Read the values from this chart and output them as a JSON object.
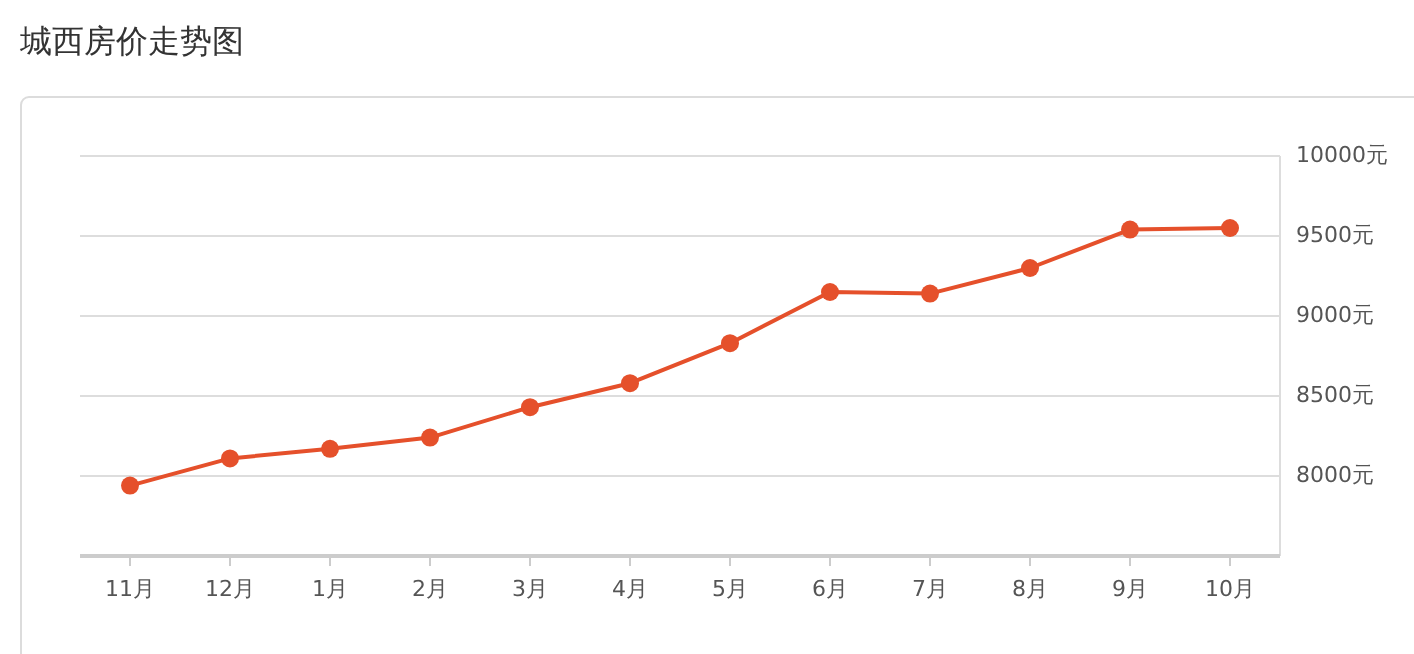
{
  "chart_data": {
    "type": "line",
    "title": "城西房价走势图",
    "categories": [
      "11月",
      "12月",
      "1月",
      "2月",
      "3月",
      "4月",
      "5月",
      "6月",
      "7月",
      "8月",
      "9月",
      "10月"
    ],
    "series": [
      {
        "color": "#e5502b",
        "values": [
          7940,
          8110,
          8170,
          8240,
          8430,
          8580,
          8830,
          9150,
          9140,
          9300,
          9540,
          9550
        ]
      }
    ],
    "ylim": [
      7500,
      10000
    ],
    "yticks": [
      {
        "value": 8000,
        "label": "8000元"
      },
      {
        "value": 8500,
        "label": "8500元"
      },
      {
        "value": 9000,
        "label": "9000元"
      },
      {
        "value": 9500,
        "label": "9500元"
      },
      {
        "value": 10000,
        "label": "10000元"
      }
    ],
    "grid": "y",
    "marker": "circle",
    "line_style": "solid"
  }
}
